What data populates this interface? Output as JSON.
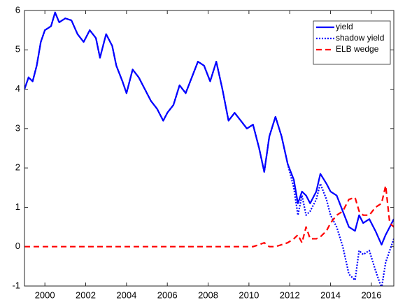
{
  "chart_data": {
    "type": "line",
    "x": [
      1999.0,
      1999.2,
      1999.4,
      1999.6,
      1999.8,
      2000.0,
      2000.3,
      2000.5,
      2000.7,
      2001.0,
      2001.3,
      2001.6,
      2001.9,
      2002.2,
      2002.5,
      2002.7,
      2003.0,
      2003.3,
      2003.5,
      2003.8,
      2004.0,
      2004.3,
      2004.6,
      2004.9,
      2005.2,
      2005.5,
      2005.8,
      2006.0,
      2006.3,
      2006.6,
      2006.9,
      2007.2,
      2007.5,
      2007.8,
      2008.1,
      2008.4,
      2008.7,
      2009.0,
      2009.3,
      2009.6,
      2009.9,
      2010.2,
      2010.5,
      2010.75,
      2011.0,
      2011.3,
      2011.6,
      2011.9,
      2012.2,
      2012.4,
      2012.6,
      2012.8,
      2013.0,
      2013.3,
      2013.5,
      2013.8,
      2014.0,
      2014.3,
      2014.6,
      2014.9,
      2015.2,
      2015.4,
      2015.6,
      2015.9,
      2016.2,
      2016.5,
      2016.7,
      2016.9,
      2017.1
    ],
    "series": [
      {
        "name": "yield",
        "color": "#0000ff",
        "style": "solid",
        "values": [
          4.0,
          4.3,
          4.2,
          4.6,
          5.2,
          5.5,
          5.6,
          5.95,
          5.7,
          5.8,
          5.75,
          5.4,
          5.2,
          5.5,
          5.3,
          4.8,
          5.4,
          5.1,
          4.6,
          4.2,
          3.9,
          4.5,
          4.3,
          4.0,
          3.7,
          3.5,
          3.2,
          3.4,
          3.6,
          4.1,
          3.9,
          4.3,
          4.7,
          4.6,
          4.2,
          4.7,
          4.0,
          3.2,
          3.4,
          3.2,
          3.0,
          3.1,
          2.5,
          1.9,
          2.8,
          3.3,
          2.8,
          2.1,
          1.7,
          1.1,
          1.4,
          1.3,
          1.1,
          1.4,
          1.85,
          1.6,
          1.4,
          1.3,
          0.9,
          0.5,
          0.4,
          0.8,
          0.6,
          0.7,
          0.4,
          0.05,
          0.3,
          0.5,
          0.7
        ]
      },
      {
        "name": "shadow yield",
        "color": "#0000ff",
        "style": "dotted",
        "values": [
          4.0,
          4.3,
          4.2,
          4.6,
          5.2,
          5.5,
          5.6,
          5.95,
          5.7,
          5.8,
          5.75,
          5.4,
          5.2,
          5.5,
          5.3,
          4.8,
          5.4,
          5.1,
          4.6,
          4.2,
          3.9,
          4.5,
          4.3,
          4.0,
          3.7,
          3.5,
          3.2,
          3.4,
          3.6,
          4.1,
          3.9,
          4.3,
          4.7,
          4.6,
          4.2,
          4.7,
          4.0,
          3.2,
          3.4,
          3.2,
          3.0,
          3.1,
          2.5,
          1.9,
          2.8,
          3.3,
          2.8,
          2.1,
          1.5,
          0.8,
          1.3,
          0.8,
          0.9,
          1.2,
          1.6,
          1.2,
          0.8,
          0.5,
          0.0,
          -0.7,
          -0.85,
          -0.1,
          -0.2,
          -0.1,
          -0.6,
          -1.05,
          -0.4,
          -0.1,
          0.2
        ]
      },
      {
        "name": "ELB wedge",
        "color": "#ff0000",
        "style": "dashed",
        "values": [
          0,
          0,
          0,
          0,
          0,
          0,
          0,
          0,
          0,
          0,
          0,
          0,
          0,
          0,
          0,
          0,
          0,
          0,
          0,
          0,
          0,
          0,
          0,
          0,
          0,
          0,
          0,
          0,
          0,
          0,
          0,
          0,
          0,
          0,
          0,
          0,
          0,
          0,
          0,
          0,
          0,
          0,
          0.05,
          0.1,
          0.0,
          0.0,
          0.05,
          0.1,
          0.2,
          0.3,
          0.1,
          0.5,
          0.2,
          0.2,
          0.25,
          0.4,
          0.6,
          0.8,
          0.9,
          1.2,
          1.25,
          0.9,
          0.8,
          0.8,
          1.0,
          1.1,
          1.55,
          0.6,
          0.5
        ]
      }
    ],
    "xlim": [
      1999,
      2017.1
    ],
    "ylim": [
      -1,
      6
    ],
    "xticks": [
      2000,
      2002,
      2004,
      2006,
      2008,
      2010,
      2012,
      2014,
      2016
    ],
    "yticks": [
      -1,
      0,
      1,
      2,
      3,
      4,
      5,
      6
    ],
    "legend": "northeast"
  }
}
